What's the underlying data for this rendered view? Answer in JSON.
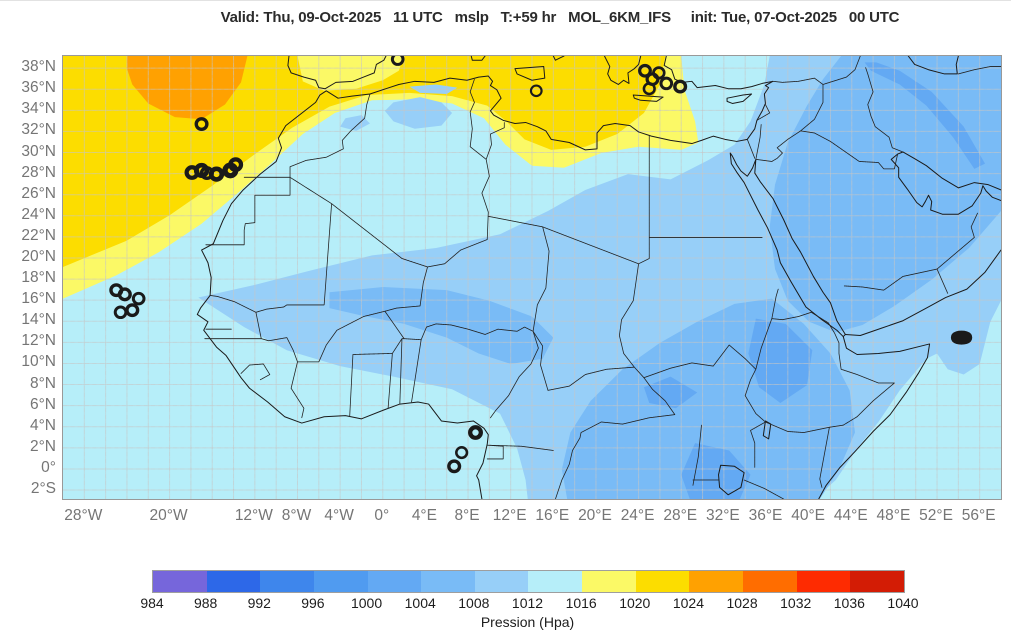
{
  "title": "Valid: Thu, 09-Oct-2025   11 UTC   mslp   T:+59 hr   MOL_6KM_IFS     init: Tue, 07-Oct-2025   00 UTC",
  "map": {
    "lon_range": [
      -30,
      58
    ],
    "lat_range": [
      -2.85,
      39.15
    ],
    "grid_step_deg": 2,
    "lat_ticks": [
      {
        "v": 38,
        "label": "38°N"
      },
      {
        "v": 36,
        "label": "36°N"
      },
      {
        "v": 34,
        "label": "34°N"
      },
      {
        "v": 32,
        "label": "32°N"
      },
      {
        "v": 30,
        "label": "30°N"
      },
      {
        "v": 28,
        "label": "28°N"
      },
      {
        "v": 26,
        "label": "26°N"
      },
      {
        "v": 24,
        "label": "24°N"
      },
      {
        "v": 22,
        "label": "22°N"
      },
      {
        "v": 20,
        "label": "20°N"
      },
      {
        "v": 18,
        "label": "18°N"
      },
      {
        "v": 16,
        "label": "16°N"
      },
      {
        "v": 14,
        "label": "14°N"
      },
      {
        "v": 12,
        "label": "12°N"
      },
      {
        "v": 10,
        "label": "10°N"
      },
      {
        "v": 8,
        "label": "8°N"
      },
      {
        "v": 6,
        "label": "6°N"
      },
      {
        "v": 4,
        "label": "4°N"
      },
      {
        "v": 2,
        "label": "2°N"
      },
      {
        "v": 0,
        "label": "0°"
      },
      {
        "v": -2,
        "label": "2°S"
      }
    ],
    "lon_ticks": [
      {
        "v": -28,
        "label": "28°W"
      },
      {
        "v": -20,
        "label": "20°W"
      },
      {
        "v": -12,
        "label": "12°W"
      },
      {
        "v": -8,
        "label": "8°W"
      },
      {
        "v": -4,
        "label": "4°W"
      },
      {
        "v": 0,
        "label": "0°"
      },
      {
        "v": 4,
        "label": "4°E"
      },
      {
        "v": 8,
        "label": "8°E"
      },
      {
        "v": 12,
        "label": "12°E"
      },
      {
        "v": 16,
        "label": "16°E"
      },
      {
        "v": 20,
        "label": "20°E"
      },
      {
        "v": 24,
        "label": "24°E"
      },
      {
        "v": 28,
        "label": "28°E"
      },
      {
        "v": 32,
        "label": "32°E"
      },
      {
        "v": 36,
        "label": "36°E"
      },
      {
        "v": 40,
        "label": "40°E"
      },
      {
        "v": 44,
        "label": "44°E"
      },
      {
        "v": 48,
        "label": "48°E"
      },
      {
        "v": 52,
        "label": "52°E"
      },
      {
        "v": 56,
        "label": "56°E"
      }
    ]
  },
  "legend": {
    "caption": "Pression (Hpa)",
    "ticks": [
      "984",
      "988",
      "992",
      "996",
      "1000",
      "1004",
      "1008",
      "1012",
      "1016",
      "1020",
      "1024",
      "1028",
      "1032",
      "1036",
      "1040"
    ],
    "colors": [
      "#7666db",
      "#2d68e8",
      "#3e86ec",
      "#509bf0",
      "#63a9f3",
      "#79bbf6",
      "#97cff8",
      "#b6eef9",
      "#fbf966",
      "#fcdd00",
      "#ffa101",
      "#ff6d00",
      "#fe2b01",
      "#d31c05"
    ]
  },
  "field_regions": [
    {
      "level_hpa": "1012-1016",
      "color_index": 7,
      "note": "base field: Sahara, Gulf of Guinea, Egypt, SE Indian Ocean"
    },
    {
      "level_hpa": "1016-1020",
      "color_index": 8,
      "note": "pale yellow rim NW Africa and central Mediterranean"
    },
    {
      "level_hpa": "1020-1024",
      "color_index": 9,
      "note": "gold high over NE Atlantic and central Mediterranean"
    },
    {
      "level_hpa": "1024-1028",
      "color_index": 10,
      "note": "orange high core west of Madeira"
    },
    {
      "level_hpa": "1008-1012",
      "color_index": 6,
      "note": "light blue Sahel, Sudan, Levant, Horn approach"
    },
    {
      "level_hpa": "1004-1008",
      "color_index": 5,
      "note": "medium blue Arabia, Iraq-Iran, East Africa, Congo"
    },
    {
      "level_hpa": "1000-1004",
      "color_index": 4,
      "note": "deep blue Zagros, Ethiopian highlands, Lake Victoria, South Sudan"
    }
  ]
}
